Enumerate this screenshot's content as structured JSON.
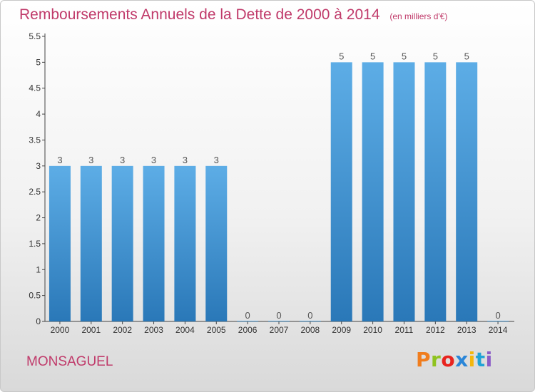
{
  "header": {
    "title": "Remboursements Annuels de la Dette de 2000 à 2014",
    "unit": "(en milliers d'€)"
  },
  "footer": {
    "commune": "MONSAGUEL",
    "brand": "Proxiti",
    "brand_colors": [
      "#f07d1e",
      "#8fc31f",
      "#e8241f",
      "#2a86d8",
      "#f3b70e",
      "#1fa3d6",
      "#8a5cc7"
    ]
  },
  "chart_data": {
    "type": "bar",
    "categories": [
      "2000",
      "2001",
      "2002",
      "2003",
      "2004",
      "2005",
      "2006",
      "2007",
      "2008",
      "2009",
      "2010",
      "2011",
      "2012",
      "2013",
      "2014"
    ],
    "values": [
      3,
      3,
      3,
      3,
      3,
      3,
      0,
      0,
      0,
      5,
      5,
      5,
      5,
      5,
      0
    ],
    "data_labels": [
      "3",
      "3",
      "3",
      "3",
      "3",
      "3",
      "0",
      "0",
      "0",
      "5",
      "5",
      "5",
      "5",
      "5",
      "0"
    ],
    "yticks": [
      0,
      0.5,
      1,
      1.5,
      2,
      2.5,
      3,
      3.5,
      4,
      4.5,
      5,
      5.5
    ],
    "ytick_labels": [
      "0",
      "0.5",
      "1",
      "1.5",
      "2",
      "2.5",
      "3",
      "3.5",
      "4",
      "4.5",
      "5",
      "5.5"
    ],
    "ylim": [
      0,
      5.5
    ],
    "grid": false,
    "bar_color_light": "#5dade6",
    "bar_color_dark": "#2a78b8"
  }
}
